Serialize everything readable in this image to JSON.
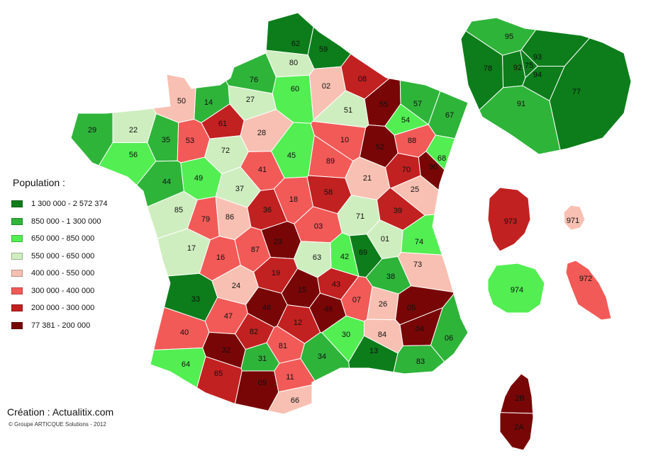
{
  "legend": {
    "title": "Population :",
    "classes": [
      {
        "label": "1 300 000 - 2 572 374",
        "color": "#0c7d1a"
      },
      {
        "label": "850 000 - 1 300 000",
        "color": "#2fb43a"
      },
      {
        "label": "650 000 - 850 000",
        "color": "#52ee52"
      },
      {
        "label": "550 000 - 650 000",
        "color": "#cfeec0"
      },
      {
        "label": "400 000 - 550 000",
        "color": "#f8c0b2"
      },
      {
        "label": "300 000 - 400 000",
        "color": "#f25a57"
      },
      {
        "label": "200 000 - 300 000",
        "color": "#c22121"
      },
      {
        "label": "77 381 - 200 000",
        "color": "#780606"
      }
    ]
  },
  "departments": [
    {
      "code": "62",
      "cls": 0
    },
    {
      "code": "59",
      "cls": 0
    },
    {
      "code": "80",
      "cls": 3
    },
    {
      "code": "76",
      "cls": 1
    },
    {
      "code": "60",
      "cls": 2
    },
    {
      "code": "02",
      "cls": 4
    },
    {
      "code": "08",
      "cls": 6
    },
    {
      "code": "27",
      "cls": 3
    },
    {
      "code": "14",
      "cls": 1
    },
    {
      "code": "50",
      "cls": 4
    },
    {
      "code": "29",
      "cls": 1
    },
    {
      "code": "22",
      "cls": 3
    },
    {
      "code": "56",
      "cls": 2
    },
    {
      "code": "35",
      "cls": 1
    },
    {
      "code": "53",
      "cls": 5
    },
    {
      "code": "61",
      "cls": 6
    },
    {
      "code": "28",
      "cls": 4
    },
    {
      "code": "72",
      "cls": 3
    },
    {
      "code": "45",
      "cls": 2
    },
    {
      "code": "51",
      "cls": 3
    },
    {
      "code": "55",
      "cls": 7
    },
    {
      "code": "57",
      "cls": 1
    },
    {
      "code": "54",
      "cls": 2
    },
    {
      "code": "67",
      "cls": 1
    },
    {
      "code": "68",
      "cls": 2
    },
    {
      "code": "88",
      "cls": 5
    },
    {
      "code": "52",
      "cls": 7
    },
    {
      "code": "10",
      "cls": 5
    },
    {
      "code": "89",
      "cls": 5
    },
    {
      "code": "70",
      "cls": 6
    },
    {
      "code": "90",
      "cls": 7
    },
    {
      "code": "21",
      "cls": 4
    },
    {
      "code": "25",
      "cls": 4
    },
    {
      "code": "39",
      "cls": 6
    },
    {
      "code": "58",
      "cls": 6
    },
    {
      "code": "18",
      "cls": 5
    },
    {
      "code": "41",
      "cls": 5
    },
    {
      "code": "37",
      "cls": 3
    },
    {
      "code": "49",
      "cls": 2
    },
    {
      "code": "44",
      "cls": 1
    },
    {
      "code": "85",
      "cls": 3
    },
    {
      "code": "79",
      "cls": 5
    },
    {
      "code": "86",
      "cls": 4
    },
    {
      "code": "36",
      "cls": 6
    },
    {
      "code": "71",
      "cls": 3
    },
    {
      "code": "03",
      "cls": 5
    },
    {
      "code": "01",
      "cls": 3
    },
    {
      "code": "74",
      "cls": 2
    },
    {
      "code": "69",
      "cls": 0
    },
    {
      "code": "42",
      "cls": 2
    },
    {
      "code": "63",
      "cls": 3
    },
    {
      "code": "23",
      "cls": 7
    },
    {
      "code": "87",
      "cls": 5
    },
    {
      "code": "17",
      "cls": 3
    },
    {
      "code": "16",
      "cls": 5
    },
    {
      "code": "73",
      "cls": 4
    },
    {
      "code": "38",
      "cls": 1
    },
    {
      "code": "19",
      "cls": 6
    },
    {
      "code": "24",
      "cls": 4
    },
    {
      "code": "15",
      "cls": 7
    },
    {
      "code": "43",
      "cls": 6
    },
    {
      "code": "07",
      "cls": 5
    },
    {
      "code": "26",
      "cls": 4
    },
    {
      "code": "05",
      "cls": 7
    },
    {
      "code": "33",
      "cls": 0
    },
    {
      "code": "47",
      "cls": 5
    },
    {
      "code": "46",
      "cls": 7
    },
    {
      "code": "12",
      "cls": 6
    },
    {
      "code": "48",
      "cls": 7
    },
    {
      "code": "30",
      "cls": 2
    },
    {
      "code": "84",
      "cls": 4
    },
    {
      "code": "04",
      "cls": 7
    },
    {
      "code": "06",
      "cls": 1
    },
    {
      "code": "40",
      "cls": 5
    },
    {
      "code": "82",
      "cls": 6
    },
    {
      "code": "81",
      "cls": 5
    },
    {
      "code": "34",
      "cls": 1
    },
    {
      "code": "13",
      "cls": 0
    },
    {
      "code": "83",
      "cls": 1
    },
    {
      "code": "32",
      "cls": 7
    },
    {
      "code": "31",
      "cls": 1
    },
    {
      "code": "64",
      "cls": 2
    },
    {
      "code": "65",
      "cls": 6
    },
    {
      "code": "09",
      "cls": 7
    },
    {
      "code": "11",
      "cls": 5
    },
    {
      "code": "66",
      "cls": 4
    },
    {
      "code": "95",
      "cls": 1
    },
    {
      "code": "78",
      "cls": 0
    },
    {
      "code": "93",
      "cls": 0
    },
    {
      "code": "92",
      "cls": 0
    },
    {
      "code": "75",
      "cls": 0
    },
    {
      "code": "94",
      "cls": 0
    },
    {
      "code": "77",
      "cls": 0
    },
    {
      "code": "91",
      "cls": 1
    },
    {
      "code": "973",
      "cls": 6
    },
    {
      "code": "971",
      "cls": 4
    },
    {
      "code": "974",
      "cls": 2
    },
    {
      "code": "972",
      "cls": 5
    },
    {
      "code": "2B",
      "cls": 7
    },
    {
      "code": "2A",
      "cls": 7
    }
  ],
  "credit": "Création : Actualitix.com",
  "copyright": "© Groupe ARTICQUE Solutions - 2012"
}
